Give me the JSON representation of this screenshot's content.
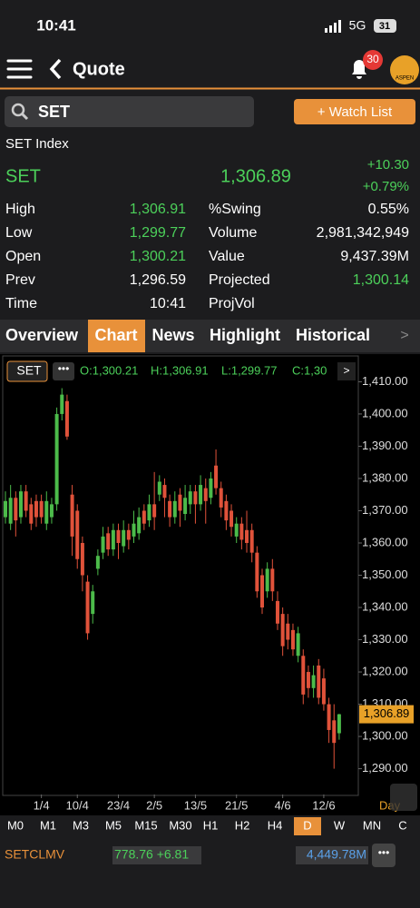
{
  "status": {
    "time": "10:41",
    "network": "5G",
    "battery": "31"
  },
  "header": {
    "title": "Quote",
    "badge": "30",
    "logo": "ASPEN"
  },
  "search": {
    "query": "SET",
    "button": "+ Watch List"
  },
  "quote": {
    "index_name": "SET Index",
    "symbol": "SET",
    "price": "1,306.89",
    "change": "+10.30",
    "change_pct": "+0.79%",
    "left": [
      [
        "High",
        "1,306.91"
      ],
      [
        "Low",
        "1,299.77"
      ],
      [
        "Open",
        "1,300.21"
      ],
      [
        "Prev",
        "1,296.59"
      ],
      [
        "Time",
        "10:41"
      ]
    ],
    "right": [
      [
        "%Swing",
        "0.55%"
      ],
      [
        "Volume",
        "2,981,342,949"
      ],
      [
        "Value",
        "9,437.39M"
      ],
      [
        "Projected",
        "1,300.14"
      ],
      [
        "ProjVol"
      ]
    ]
  },
  "tabs": [
    "Overview",
    "Chart",
    "News",
    "Highlight",
    "Historical"
  ],
  "active_tab": 1,
  "chart_data": {
    "type": "candlestick",
    "symbol": "SET",
    "legend": [
      "O:1,300.21",
      "H:1,306.91",
      "L:1,299.77",
      "C:1,30"
    ],
    "last_label": "1,306.89",
    "last": 1306.89,
    "period": "Day",
    "up_color": "#4cbb4a",
    "down_color": "#e0523a",
    "categories": [
      null,
      null,
      null,
      null,
      null,
      null,
      null,
      "1/4",
      null,
      null,
      null,
      null,
      null,
      null,
      "10/4",
      null,
      null,
      null,
      null,
      null,
      null,
      null,
      "23/4",
      null,
      null,
      null,
      null,
      null,
      null,
      "2/5",
      null,
      null,
      null,
      null,
      null,
      null,
      null,
      "13/5",
      null,
      null,
      null,
      null,
      null,
      null,
      null,
      "21/5",
      null,
      null,
      null,
      null,
      null,
      null,
      null,
      null,
      "4/6",
      null,
      null,
      null,
      null,
      null,
      null,
      null,
      "12/6",
      null,
      null,
      null
    ],
    "open": [
      1368,
      1366,
      1374,
      1368,
      1376,
      1372,
      1373,
      1373,
      1366,
      1368,
      1372,
      1400,
      1404,
      1375,
      1370,
      1360,
      1348,
      1338,
      1352,
      1357,
      1363,
      1358,
      1364,
      1359,
      1364,
      1362,
      1363,
      1370,
      1367,
      1372,
      1375,
      1378,
      1373,
      1368,
      1375,
      1369,
      1372,
      1376,
      1372,
      1377,
      1374,
      1384,
      1377,
      1373,
      1370,
      1362,
      1366,
      1364,
      1364,
      1357,
      1350,
      1345,
      1352,
      1342,
      1338,
      1335,
      1333,
      1325,
      1325,
      1320,
      1315,
      1322,
      1318,
      1310,
      1305,
      1301
    ],
    "high": [
      1376,
      1378,
      1376,
      1378,
      1378,
      1374,
      1375,
      1375,
      1376,
      1374,
      1402,
      1408,
      1406,
      1378,
      1372,
      1362,
      1350,
      1347,
      1358,
      1365,
      1365,
      1366,
      1366,
      1367,
      1366,
      1370,
      1371,
      1372,
      1375,
      1382,
      1381,
      1380,
      1375,
      1376,
      1377,
      1378,
      1378,
      1378,
      1381,
      1380,
      1382,
      1389,
      1379,
      1375,
      1372,
      1368,
      1368,
      1370,
      1366,
      1359,
      1352,
      1354,
      1355,
      1345,
      1340,
      1338,
      1335,
      1334,
      1327,
      1322,
      1322,
      1324,
      1321,
      1312,
      1310,
      1307
    ],
    "low": [
      1366,
      1364,
      1362,
      1366,
      1368,
      1364,
      1365,
      1366,
      1364,
      1366,
      1370,
      1398,
      1392,
      1356,
      1352,
      1345,
      1330,
      1335,
      1350,
      1355,
      1356,
      1356,
      1355,
      1357,
      1358,
      1360,
      1361,
      1364,
      1365,
      1364,
      1373,
      1368,
      1365,
      1366,
      1365,
      1367,
      1369,
      1366,
      1370,
      1366,
      1372,
      1375,
      1368,
      1364,
      1362,
      1360,
      1358,
      1357,
      1354,
      1343,
      1338,
      1343,
      1342,
      1333,
      1325,
      1327,
      1325,
      1323,
      1310,
      1312,
      1312,
      1310,
      1308,
      1298,
      1290,
      1299
    ],
    "close": [
      1373,
      1374,
      1367,
      1376,
      1370,
      1366,
      1368,
      1368,
      1373,
      1372,
      1400,
      1406,
      1393,
      1362,
      1355,
      1350,
      1332,
      1345,
      1356,
      1362,
      1358,
      1364,
      1360,
      1364,
      1361,
      1366,
      1368,
      1366,
      1372,
      1368,
      1379,
      1374,
      1368,
      1373,
      1370,
      1374,
      1376,
      1372,
      1378,
      1373,
      1380,
      1377,
      1371,
      1367,
      1365,
      1366,
      1361,
      1360,
      1357,
      1345,
      1340,
      1352,
      1345,
      1335,
      1328,
      1330,
      1327,
      1332,
      1313,
      1315,
      1319,
      1312,
      1310,
      1302,
      1298,
      1306.89
    ],
    "ylim": [
      1282,
      1418
    ],
    "yticks": [
      {
        "value": 1290,
        "label": "1,290.00"
      },
      {
        "value": 1300,
        "label": "1,300.00"
      },
      {
        "value": 1310,
        "label": "1,310.00"
      },
      {
        "value": 1320,
        "label": "1,320.00"
      },
      {
        "value": 1330,
        "label": "1,330.00"
      },
      {
        "value": 1340,
        "label": "1,340.00"
      },
      {
        "value": 1350,
        "label": "1,350.00"
      },
      {
        "value": 1360,
        "label": "1,360.00"
      },
      {
        "value": 1370,
        "label": "1,370.00"
      },
      {
        "value": 1380,
        "label": "1,380.00"
      },
      {
        "value": 1390,
        "label": "1,390.00"
      },
      {
        "value": 1400,
        "label": "1,400.00"
      },
      {
        "value": 1410,
        "label": "1,410.00"
      }
    ]
  },
  "timeframes": [
    "M0",
    "M1",
    "M3",
    "M5",
    "M15",
    "M30",
    "H1",
    "H2",
    "H4",
    "D",
    "W",
    "MN",
    "C"
  ],
  "active_timeframe": 9,
  "footer": {
    "name": "SETCLMV",
    "index": "778.76 +6.81",
    "value": "4,449.78M"
  }
}
